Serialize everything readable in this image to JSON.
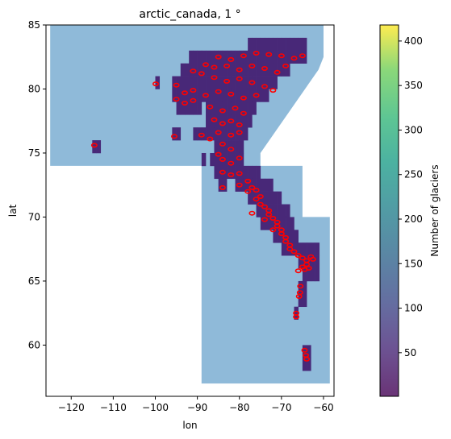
{
  "chart_data": {
    "type": "heatmap",
    "title": "arctic_canada, 1 °",
    "xlabel": "lon",
    "ylabel": "lat",
    "xlim": [
      -126,
      -57.5
    ],
    "ylim": [
      56,
      85
    ],
    "xticks": [
      -120,
      -110,
      -100,
      -90,
      -80,
      -70,
      -60
    ],
    "yticks": [
      60,
      65,
      70,
      75,
      80,
      85
    ],
    "region_color": "#8fbad9",
    "cell_color": "#482878",
    "outline_color": "#ff0000",
    "region_polygon": [
      [
        -125,
        85
      ],
      [
        -60,
        85
      ],
      [
        -60,
        82.5
      ],
      [
        -61.2,
        81.5
      ],
      [
        -75,
        75
      ],
      [
        -75,
        74
      ],
      [
        -65,
        74
      ],
      [
        -65,
        70
      ],
      [
        -58.5,
        70
      ],
      [
        -58.5,
        57
      ],
      [
        -89,
        57
      ],
      [
        -89,
        74
      ],
      [
        -125,
        74
      ]
    ],
    "glacier_cells": [
      [
        -78,
        83
      ],
      [
        -77,
        83
      ],
      [
        -76,
        83
      ],
      [
        -75,
        83
      ],
      [
        -74,
        83
      ],
      [
        -73,
        83
      ],
      [
        -72,
        83
      ],
      [
        -71,
        83
      ],
      [
        -70,
        83
      ],
      [
        -69,
        83
      ],
      [
        -68,
        83
      ],
      [
        -67,
        83
      ],
      [
        -66,
        83
      ],
      [
        -65,
        83
      ],
      [
        -92,
        82
      ],
      [
        -91,
        82
      ],
      [
        -90,
        82
      ],
      [
        -89,
        82
      ],
      [
        -88,
        82
      ],
      [
        -87,
        82
      ],
      [
        -86,
        82
      ],
      [
        -85,
        82
      ],
      [
        -84,
        82
      ],
      [
        -83,
        82
      ],
      [
        -82,
        82
      ],
      [
        -81,
        82
      ],
      [
        -80,
        82
      ],
      [
        -79,
        82
      ],
      [
        -78,
        82
      ],
      [
        -77,
        82
      ],
      [
        -76,
        82
      ],
      [
        -75,
        82
      ],
      [
        -74,
        82
      ],
      [
        -73,
        82
      ],
      [
        -72,
        82
      ],
      [
        -71,
        82
      ],
      [
        -70,
        82
      ],
      [
        -69,
        82
      ],
      [
        -68,
        82
      ],
      [
        -67,
        82
      ],
      [
        -66,
        82
      ],
      [
        -65,
        82
      ],
      [
        -94,
        81
      ],
      [
        -93,
        81
      ],
      [
        -92,
        81
      ],
      [
        -91,
        81
      ],
      [
        -90,
        81
      ],
      [
        -89,
        81
      ],
      [
        -88,
        81
      ],
      [
        -87,
        81
      ],
      [
        -86,
        81
      ],
      [
        -85,
        81
      ],
      [
        -84,
        81
      ],
      [
        -83,
        81
      ],
      [
        -82,
        81
      ],
      [
        -81,
        81
      ],
      [
        -80,
        81
      ],
      [
        -79,
        81
      ],
      [
        -78,
        81
      ],
      [
        -77,
        81
      ],
      [
        -76,
        81
      ],
      [
        -75,
        81
      ],
      [
        -74,
        81
      ],
      [
        -73,
        81
      ],
      [
        -72,
        81
      ],
      [
        -71,
        81
      ],
      [
        -70,
        81
      ],
      [
        -69,
        81
      ],
      [
        -100,
        80
      ],
      [
        -96,
        80
      ],
      [
        -95,
        80
      ],
      [
        -94,
        80
      ],
      [
        -93,
        80
      ],
      [
        -92,
        80
      ],
      [
        -91,
        80
      ],
      [
        -90,
        80
      ],
      [
        -89,
        80
      ],
      [
        -88,
        80
      ],
      [
        -87,
        80
      ],
      [
        -86,
        80
      ],
      [
        -85,
        80
      ],
      [
        -84,
        80
      ],
      [
        -83,
        80
      ],
      [
        -82,
        80
      ],
      [
        -81,
        80
      ],
      [
        -80,
        80
      ],
      [
        -79,
        80
      ],
      [
        -78,
        80
      ],
      [
        -77,
        80
      ],
      [
        -76,
        80
      ],
      [
        -75,
        80
      ],
      [
        -74,
        80
      ],
      [
        -73,
        80
      ],
      [
        -72,
        80
      ],
      [
        -96,
        79
      ],
      [
        -95,
        79
      ],
      [
        -94,
        79
      ],
      [
        -93,
        79
      ],
      [
        -92,
        79
      ],
      [
        -91,
        79
      ],
      [
        -90,
        79
      ],
      [
        -89,
        79
      ],
      [
        -88,
        79
      ],
      [
        -87,
        79
      ],
      [
        -86,
        79
      ],
      [
        -85,
        79
      ],
      [
        -84,
        79
      ],
      [
        -83,
        79
      ],
      [
        -82,
        79
      ],
      [
        -81,
        79
      ],
      [
        -80,
        79
      ],
      [
        -79,
        79
      ],
      [
        -78,
        79
      ],
      [
        -77,
        79
      ],
      [
        -76,
        79
      ],
      [
        -75,
        79
      ],
      [
        -74,
        79
      ],
      [
        -95,
        78
      ],
      [
        -94,
        78
      ],
      [
        -93,
        78
      ],
      [
        -92,
        78
      ],
      [
        -91,
        78
      ],
      [
        -90,
        78
      ],
      [
        -88,
        78
      ],
      [
        -87,
        78
      ],
      [
        -86,
        78
      ],
      [
        -85,
        78
      ],
      [
        -84,
        78
      ],
      [
        -83,
        78
      ],
      [
        -82,
        78
      ],
      [
        -81,
        78
      ],
      [
        -80,
        78
      ],
      [
        -79,
        78
      ],
      [
        -78,
        78
      ],
      [
        -77,
        78
      ],
      [
        -88,
        77
      ],
      [
        -87,
        77
      ],
      [
        -86,
        77
      ],
      [
        -85,
        77
      ],
      [
        -84,
        77
      ],
      [
        -83,
        77
      ],
      [
        -82,
        77
      ],
      [
        -81,
        77
      ],
      [
        -80,
        77
      ],
      [
        -79,
        77
      ],
      [
        -78,
        77
      ],
      [
        -96,
        76
      ],
      [
        -95,
        76
      ],
      [
        -91,
        76
      ],
      [
        -90,
        76
      ],
      [
        -89,
        76
      ],
      [
        -88,
        76
      ],
      [
        -87,
        76
      ],
      [
        -86,
        76
      ],
      [
        -85,
        76
      ],
      [
        -84,
        76
      ],
      [
        -83,
        76
      ],
      [
        -82,
        76
      ],
      [
        -81,
        76
      ],
      [
        -80,
        76
      ],
      [
        -79,
        76
      ],
      [
        -115,
        75
      ],
      [
        -114,
        75
      ],
      [
        -86,
        75
      ],
      [
        -85,
        75
      ],
      [
        -84,
        75
      ],
      [
        -83,
        75
      ],
      [
        -82,
        75
      ],
      [
        -81,
        75
      ],
      [
        -80,
        75
      ],
      [
        -89,
        74
      ],
      [
        -87,
        74
      ],
      [
        -86,
        74
      ],
      [
        -85,
        74
      ],
      [
        -84,
        74
      ],
      [
        -83,
        74
      ],
      [
        -82,
        74
      ],
      [
        -81,
        74
      ],
      [
        -80,
        74
      ],
      [
        -86,
        73
      ],
      [
        -85,
        73
      ],
      [
        -84,
        73
      ],
      [
        -83,
        73
      ],
      [
        -82,
        73
      ],
      [
        -81,
        73
      ],
      [
        -80,
        73
      ],
      [
        -79,
        73
      ],
      [
        -78,
        73
      ],
      [
        -77,
        73
      ],
      [
        -76,
        73
      ],
      [
        -85,
        72
      ],
      [
        -84,
        72
      ],
      [
        -81,
        72
      ],
      [
        -80,
        72
      ],
      [
        -79,
        72
      ],
      [
        -78,
        72
      ],
      [
        -77,
        72
      ],
      [
        -76,
        72
      ],
      [
        -75,
        72
      ],
      [
        -74,
        72
      ],
      [
        -73,
        72
      ],
      [
        -78,
        71
      ],
      [
        -77,
        71
      ],
      [
        -76,
        71
      ],
      [
        -75,
        71
      ],
      [
        -74,
        71
      ],
      [
        -73,
        71
      ],
      [
        -72,
        71
      ],
      [
        -71,
        71
      ],
      [
        -76,
        70
      ],
      [
        -75,
        70
      ],
      [
        -74,
        70
      ],
      [
        -73,
        70
      ],
      [
        -72,
        70
      ],
      [
        -71,
        70
      ],
      [
        -70,
        70
      ],
      [
        -69,
        70
      ],
      [
        -75,
        69
      ],
      [
        -74,
        69
      ],
      [
        -73,
        69
      ],
      [
        -72,
        69
      ],
      [
        -71,
        69
      ],
      [
        -70,
        69
      ],
      [
        -69,
        69
      ],
      [
        -68,
        69
      ],
      [
        -72,
        68
      ],
      [
        -71,
        68
      ],
      [
        -70,
        68
      ],
      [
        -69,
        68
      ],
      [
        -68,
        68
      ],
      [
        -67,
        68
      ],
      [
        -70,
        67
      ],
      [
        -69,
        67
      ],
      [
        -68,
        67
      ],
      [
        -67,
        67
      ],
      [
        -66,
        67
      ],
      [
        -65,
        67
      ],
      [
        -64,
        67
      ],
      [
        -63,
        67
      ],
      [
        -62,
        67
      ],
      [
        -66,
        66
      ],
      [
        -65,
        66
      ],
      [
        -64,
        66
      ],
      [
        -63,
        66
      ],
      [
        -62,
        66
      ],
      [
        -65,
        65
      ],
      [
        -64,
        65
      ],
      [
        -63,
        65
      ],
      [
        -62,
        65
      ],
      [
        -66,
        64
      ],
      [
        -65,
        64
      ],
      [
        -66,
        63
      ],
      [
        -65,
        63
      ],
      [
        -67,
        62
      ],
      [
        -65,
        59
      ],
      [
        -64,
        59
      ],
      [
        -65,
        58
      ],
      [
        -64,
        58
      ]
    ],
    "glacier_outline_points": [
      [
        -85,
        82.5
      ],
      [
        -82,
        82.3
      ],
      [
        -79,
        82.6
      ],
      [
        -76,
        82.8
      ],
      [
        -73,
        82.7
      ],
      [
        -70,
        82.6
      ],
      [
        -67,
        82.4
      ],
      [
        -65,
        82.6
      ],
      [
        -88,
        81.9
      ],
      [
        -86,
        81.7
      ],
      [
        -83,
        81.8
      ],
      [
        -80,
        81.5
      ],
      [
        -77,
        81.8
      ],
      [
        -74,
        81.6
      ],
      [
        -71,
        81.3
      ],
      [
        -69,
        81.8
      ],
      [
        -91,
        81.4
      ],
      [
        -89,
        81.2
      ],
      [
        -86,
        80.9
      ],
      [
        -83,
        80.6
      ],
      [
        -80,
        80.8
      ],
      [
        -77,
        80.5
      ],
      [
        -74,
        80.2
      ],
      [
        -72,
        79.9
      ],
      [
        -95,
        80.3
      ],
      [
        -93,
        79.7
      ],
      [
        -91,
        79.9
      ],
      [
        -88,
        79.5
      ],
      [
        -85,
        79.8
      ],
      [
        -82,
        79.6
      ],
      [
        -79,
        79.3
      ],
      [
        -76,
        79.5
      ],
      [
        -95,
        79.2
      ],
      [
        -93,
        78.9
      ],
      [
        -91,
        79.1
      ],
      [
        -87,
        78.6
      ],
      [
        -84,
        78.3
      ],
      [
        -81,
        78.5
      ],
      [
        -79,
        78.1
      ],
      [
        -86,
        77.6
      ],
      [
        -84,
        77.3
      ],
      [
        -82,
        77.5
      ],
      [
        -80,
        77.2
      ],
      [
        -85,
        76.6
      ],
      [
        -82,
        76.4
      ],
      [
        -80,
        76.6
      ],
      [
        -89,
        76.4
      ],
      [
        -87,
        76.1
      ],
      [
        -84,
        75.7
      ],
      [
        -82,
        75.3
      ],
      [
        -85,
        74.9
      ],
      [
        -84,
        74.5
      ],
      [
        -82,
        74.2
      ],
      [
        -80,
        74.6
      ],
      [
        -114.5,
        75.6
      ],
      [
        -95.5,
        76.3
      ],
      [
        -99.9,
        80.4
      ],
      [
        -84,
        73.5
      ],
      [
        -82,
        73.3
      ],
      [
        -80,
        73.4
      ],
      [
        -78,
        72.8
      ],
      [
        -77,
        72.3
      ],
      [
        -76,
        72.1
      ],
      [
        -75,
        71.6
      ],
      [
        -84,
        72.3
      ],
      [
        -80,
        72.5
      ],
      [
        -78,
        72.0
      ],
      [
        -76,
        71.4
      ],
      [
        -75,
        71.0
      ],
      [
        -74,
        70.8
      ],
      [
        -73,
        70.5
      ],
      [
        -73,
        70.2
      ],
      [
        -72,
        69.9
      ],
      [
        -71,
        69.6
      ],
      [
        -71,
        69.3
      ],
      [
        -70,
        69.0
      ],
      [
        -70,
        68.7
      ],
      [
        -69,
        68.4
      ],
      [
        -69,
        68.1
      ],
      [
        -68,
        67.8
      ],
      [
        -68,
        67.5
      ],
      [
        -67,
        67.3
      ],
      [
        -66,
        67.0
      ],
      [
        -65,
        66.8
      ],
      [
        -64,
        66.6
      ],
      [
        -63,
        66.9
      ],
      [
        -62.5,
        66.7
      ],
      [
        -64,
        66.3
      ],
      [
        -65,
        66.1
      ],
      [
        -66,
        65.8
      ],
      [
        -64.5,
        65.9
      ],
      [
        -63.5,
        66.0
      ],
      [
        -65.5,
        64.6
      ],
      [
        -65.6,
        64.1
      ],
      [
        -65.8,
        63.8
      ],
      [
        -66.5,
        62.5
      ],
      [
        -66.5,
        62.2
      ],
      [
        -64.5,
        59.6
      ],
      [
        -64.2,
        59.2
      ],
      [
        -64.0,
        58.9
      ],
      [
        -77,
        70.3
      ],
      [
        -74,
        69.8
      ],
      [
        -72,
        69.0
      ]
    ],
    "colorbar": {
      "label": "Number of glaciers",
      "min": 1,
      "max": 418,
      "ticks": [
        50,
        100,
        150,
        200,
        250,
        300,
        350,
        400
      ]
    }
  }
}
